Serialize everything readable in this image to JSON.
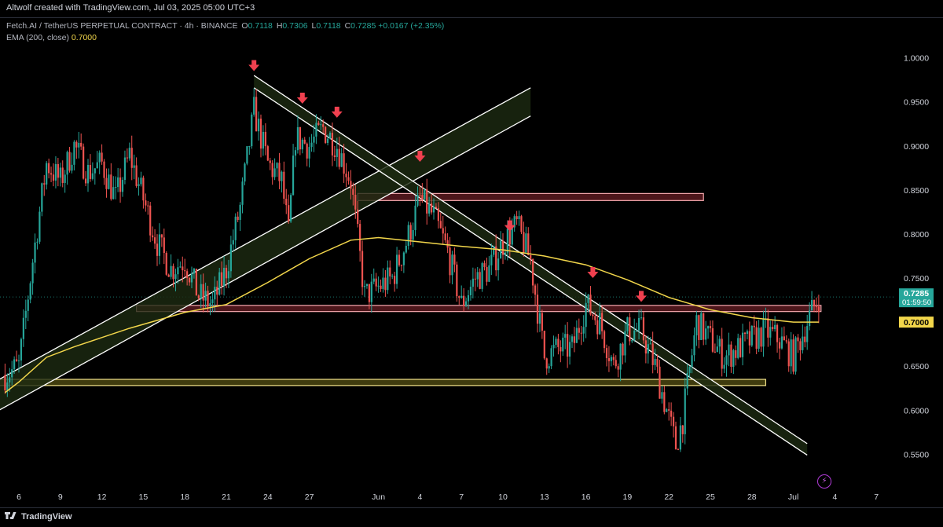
{
  "header": {
    "attribution": "Altwolf created with TradingView.com, Jul 03, 2025 05:00 UTC+3"
  },
  "legend": {
    "symbol": "Fetch.AI / TetherUS PERPETUAL CONTRACT · 4h · BINANCE",
    "open_label": "O",
    "open": "0.7118",
    "high_label": "H",
    "high": "0.7306",
    "low_label": "L",
    "low": "0.7118",
    "close_label": "C",
    "close": "0.7285",
    "change": "+0.0167 (+2.35%)",
    "ema_label": "EMA (200, close)",
    "ema_value": "0.7000"
  },
  "footer": {
    "brand": "TradingView"
  },
  "colors": {
    "background": "#000000",
    "bull": "#26a69a",
    "bear": "#ef5350",
    "ema": "#f2d64b",
    "resistance_zone": "#f4a7ad",
    "support_zone": "#f2e38a",
    "arrow": "#f0404f"
  },
  "chart_data": {
    "type": "candlestick",
    "timeframe": "4h",
    "y_axis": {
      "ticks": [
        "1.0000",
        "0.9500",
        "0.9000",
        "0.8500",
        "0.8000",
        "0.7500",
        "0.7000",
        "0.6500",
        "0.6000",
        "0.5500"
      ],
      "ylim": [
        0.52,
        1.03
      ]
    },
    "x_axis": {
      "ticks": [
        {
          "label": "6",
          "date": "2025-05-06"
        },
        {
          "label": "9",
          "date": "2025-05-09"
        },
        {
          "label": "12",
          "date": "2025-05-12"
        },
        {
          "label": "15",
          "date": "2025-05-15"
        },
        {
          "label": "18",
          "date": "2025-05-18"
        },
        {
          "label": "21",
          "date": "2025-05-21"
        },
        {
          "label": "24",
          "date": "2025-05-24"
        },
        {
          "label": "27",
          "date": "2025-05-27"
        },
        {
          "label": "Jun",
          "date": "2025-06-01"
        },
        {
          "label": "4",
          "date": "2025-06-04"
        },
        {
          "label": "7",
          "date": "2025-06-07"
        },
        {
          "label": "10",
          "date": "2025-06-10"
        },
        {
          "label": "13",
          "date": "2025-06-13"
        },
        {
          "label": "16",
          "date": "2025-06-16"
        },
        {
          "label": "19",
          "date": "2025-06-19"
        },
        {
          "label": "22",
          "date": "2025-06-22"
        },
        {
          "label": "25",
          "date": "2025-06-25"
        },
        {
          "label": "28",
          "date": "2025-06-28"
        },
        {
          "label": "Jul",
          "date": "2025-07-01"
        },
        {
          "label": "4",
          "date": "2025-07-04"
        },
        {
          "label": "7",
          "date": "2025-07-07"
        }
      ]
    },
    "current_price": {
      "price": "0.7285",
      "countdown": "01:59:50"
    },
    "ema_label_price": "0.7000",
    "price_path": [
      {
        "date": "2025-05-05",
        "price": 0.64
      },
      {
        "date": "2025-05-06",
        "price": 0.65
      },
      {
        "date": "2025-05-07",
        "price": 0.77
      },
      {
        "date": "2025-05-08",
        "price": 0.88
      },
      {
        "date": "2025-05-09",
        "price": 0.86
      },
      {
        "date": "2025-05-10",
        "price": 0.9
      },
      {
        "date": "2025-05-11",
        "price": 0.87
      },
      {
        "date": "2025-05-12",
        "price": 0.88
      },
      {
        "date": "2025-05-13",
        "price": 0.84
      },
      {
        "date": "2025-05-14",
        "price": 0.89
      },
      {
        "date": "2025-05-15",
        "price": 0.84
      },
      {
        "date": "2025-05-16",
        "price": 0.79
      },
      {
        "date": "2025-05-17",
        "price": 0.76
      },
      {
        "date": "2025-05-18",
        "price": 0.77
      },
      {
        "date": "2025-05-19",
        "price": 0.73
      },
      {
        "date": "2025-05-20",
        "price": 0.72
      },
      {
        "date": "2025-05-21",
        "price": 0.76
      },
      {
        "date": "2025-05-22",
        "price": 0.83
      },
      {
        "date": "2025-05-23",
        "price": 0.94
      },
      {
        "date": "2025-05-24",
        "price": 0.88
      },
      {
        "date": "2025-05-25",
        "price": 0.86
      },
      {
        "date": "2025-05-25T12:00",
        "price": 0.8
      },
      {
        "date": "2025-05-26",
        "price": 0.91
      },
      {
        "date": "2025-05-27",
        "price": 0.9
      },
      {
        "date": "2025-05-28",
        "price": 0.92
      },
      {
        "date": "2025-05-29",
        "price": 0.9
      },
      {
        "date": "2025-05-30",
        "price": 0.86
      },
      {
        "date": "2025-05-31",
        "price": 0.73
      },
      {
        "date": "2025-06-01",
        "price": 0.74
      },
      {
        "date": "2025-06-02",
        "price": 0.75
      },
      {
        "date": "2025-06-03",
        "price": 0.79
      },
      {
        "date": "2025-06-04",
        "price": 0.84
      },
      {
        "date": "2025-06-05",
        "price": 0.82
      },
      {
        "date": "2025-06-06",
        "price": 0.78
      },
      {
        "date": "2025-06-07",
        "price": 0.72
      },
      {
        "date": "2025-06-08",
        "price": 0.75
      },
      {
        "date": "2025-06-09",
        "price": 0.76
      },
      {
        "date": "2025-06-10",
        "price": 0.79
      },
      {
        "date": "2025-06-11",
        "price": 0.81
      },
      {
        "date": "2025-06-12",
        "price": 0.77
      },
      {
        "date": "2025-06-13",
        "price": 0.66
      },
      {
        "date": "2025-06-14",
        "price": 0.67
      },
      {
        "date": "2025-06-15",
        "price": 0.67
      },
      {
        "date": "2025-06-16",
        "price": 0.72
      },
      {
        "date": "2025-06-17",
        "price": 0.7
      },
      {
        "date": "2025-06-18",
        "price": 0.65
      },
      {
        "date": "2025-06-19",
        "price": 0.69
      },
      {
        "date": "2025-06-20",
        "price": 0.69
      },
      {
        "date": "2025-06-21",
        "price": 0.65
      },
      {
        "date": "2025-06-22",
        "price": 0.59
      },
      {
        "date": "2025-06-22T12:00",
        "price": 0.56
      },
      {
        "date": "2025-06-23",
        "price": 0.59
      },
      {
        "date": "2025-06-24",
        "price": 0.7
      },
      {
        "date": "2025-06-25",
        "price": 0.68
      },
      {
        "date": "2025-06-26",
        "price": 0.66
      },
      {
        "date": "2025-06-27",
        "price": 0.67
      },
      {
        "date": "2025-06-28",
        "price": 0.68
      },
      {
        "date": "2025-06-29",
        "price": 0.69
      },
      {
        "date": "2025-06-30",
        "price": 0.68
      },
      {
        "date": "2025-07-01",
        "price": 0.66
      },
      {
        "date": "2025-07-02",
        "price": 0.7
      },
      {
        "date": "2025-07-02T20:00",
        "price": 0.7285
      }
    ],
    "ema200": [
      {
        "date": "2025-05-05",
        "price": 0.62
      },
      {
        "date": "2025-05-06",
        "price": 0.632
      },
      {
        "date": "2025-05-08",
        "price": 0.66
      },
      {
        "date": "2025-05-10",
        "price": 0.672
      },
      {
        "date": "2025-05-14",
        "price": 0.693
      },
      {
        "date": "2025-05-18",
        "price": 0.711
      },
      {
        "date": "2025-05-21",
        "price": 0.72
      },
      {
        "date": "2025-05-24",
        "price": 0.745
      },
      {
        "date": "2025-05-27",
        "price": 0.772
      },
      {
        "date": "2025-05-30",
        "price": 0.793
      },
      {
        "date": "2025-06-01",
        "price": 0.796
      },
      {
        "date": "2025-06-04",
        "price": 0.791
      },
      {
        "date": "2025-06-07",
        "price": 0.786
      },
      {
        "date": "2025-06-10",
        "price": 0.782
      },
      {
        "date": "2025-06-13",
        "price": 0.775
      },
      {
        "date": "2025-06-16",
        "price": 0.765
      },
      {
        "date": "2025-06-19",
        "price": 0.748
      },
      {
        "date": "2025-06-22",
        "price": 0.728
      },
      {
        "date": "2025-06-25",
        "price": 0.714
      },
      {
        "date": "2025-06-28",
        "price": 0.705
      },
      {
        "date": "2025-07-01",
        "price": 0.7
      },
      {
        "date": "2025-07-02T20:00",
        "price": 0.7
      }
    ],
    "zones": [
      {
        "name": "resistance-upper",
        "from_date": "2025-05-30T12:00",
        "to_date": "2025-06-24T12:00",
        "low": 0.838,
        "high": 0.846
      },
      {
        "name": "resistance-mid",
        "from_date": "2025-05-14T12:00",
        "to_date": "2025-07-03",
        "low": 0.712,
        "high": 0.719
      },
      {
        "name": "support",
        "from_date": "2025-05-04",
        "to_date": "2025-06-29",
        "low": 0.628,
        "high": 0.635
      }
    ],
    "trend_channels": [
      {
        "name": "rising-channel",
        "from": {
          "date": "2025-05-04",
          "upper": 0.63,
          "lower": 0.595
        },
        "to": {
          "date": "2025-06-12",
          "upper": 0.966,
          "lower": 0.934
        }
      },
      {
        "name": "falling-channel",
        "from": {
          "date": "2025-05-23",
          "upper": 0.98,
          "lower": 0.966
        },
        "to": {
          "date": "2025-07-02",
          "upper": 0.562,
          "lower": 0.549
        }
      }
    ],
    "rejection_arrows": [
      {
        "date": "2025-05-23",
        "price": 0.985
      },
      {
        "date": "2025-05-26T12:00",
        "price": 0.948
      },
      {
        "date": "2025-05-29",
        "price": 0.932
      },
      {
        "date": "2025-06-04",
        "price": 0.882
      },
      {
        "date": "2025-06-10T12:00",
        "price": 0.803
      },
      {
        "date": "2025-06-16T12:00",
        "price": 0.75
      },
      {
        "date": "2025-06-20",
        "price": 0.723
      }
    ]
  }
}
